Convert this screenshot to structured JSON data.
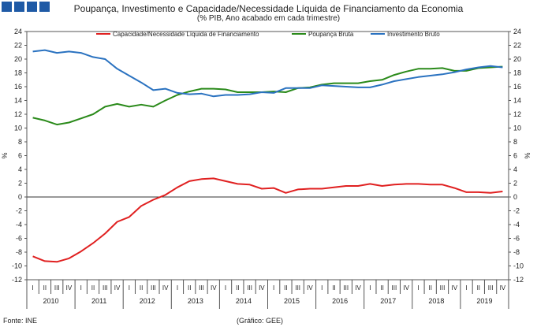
{
  "header": {
    "title": "Poupança, Investimento e Capacidade/Necessidade Líquida de Financiamento da Economia",
    "subtitle": "(% PIB, Ano acabado em cada trimestre)"
  },
  "footer": {
    "source": "Fonte: INE",
    "credit": "(Gráfico: GEE)"
  },
  "colors": {
    "logo": "#1f5aa6",
    "capacidade": "#e02020",
    "poupanca": "#2a8a1a",
    "investimento": "#2a72c0"
  },
  "chart_data": {
    "type": "line",
    "ylabel": "%",
    "ylabel_right": "%",
    "ylim": [
      -12,
      24
    ],
    "yticks": [
      -12,
      -10,
      -8,
      -6,
      -4,
      -2,
      0,
      2,
      4,
      6,
      8,
      10,
      12,
      14,
      16,
      18,
      20,
      22,
      24
    ],
    "legend_position": "top",
    "quarters": [
      "I",
      "II",
      "III",
      "IV",
      "I",
      "II",
      "III",
      "IV",
      "I",
      "II",
      "III",
      "IV",
      "I",
      "II",
      "III",
      "IV",
      "I",
      "II",
      "III",
      "IV",
      "I",
      "II",
      "III",
      "IV",
      "I",
      "II",
      "III",
      "IV",
      "I",
      "II",
      "III",
      "IV",
      "I",
      "II",
      "III",
      "IV",
      "I",
      "II",
      "III",
      "IV"
    ],
    "years": [
      "2010",
      "2011",
      "2012",
      "2013",
      "2014",
      "2015",
      "2016",
      "2017",
      "2018",
      "2019"
    ],
    "series": [
      {
        "name": "Capacidade/Necessidade Líquida de Financiamento",
        "color": "#e02020",
        "values": [
          -8.6,
          -9.3,
          -9.4,
          -8.9,
          -7.9,
          -6.7,
          -5.3,
          -3.6,
          -2.9,
          -1.3,
          -0.4,
          0.3,
          1.4,
          2.3,
          2.6,
          2.7,
          2.3,
          1.9,
          1.8,
          1.2,
          1.3,
          0.6,
          1.1,
          1.2,
          1.2,
          1.4,
          1.6,
          1.6,
          1.9,
          1.6,
          1.8,
          1.9,
          1.9,
          1.8,
          1.8,
          1.3,
          0.7,
          0.7,
          0.6,
          0.8
        ]
      },
      {
        "name": "Poupança Bruta",
        "color": "#2a8a1a",
        "values": [
          11.5,
          11.1,
          10.5,
          10.8,
          11.4,
          12.0,
          13.1,
          13.5,
          13.1,
          13.4,
          13.1,
          14.0,
          14.8,
          15.3,
          15.7,
          15.7,
          15.6,
          15.2,
          15.2,
          15.2,
          15.3,
          15.2,
          15.8,
          15.9,
          16.3,
          16.5,
          16.5,
          16.5,
          16.8,
          17.0,
          17.7,
          18.2,
          18.6,
          18.6,
          18.7,
          18.3,
          18.3,
          18.7,
          18.8,
          18.9
        ]
      },
      {
        "name": "Investimento Bruto",
        "color": "#2a72c0",
        "values": [
          21.1,
          21.3,
          20.9,
          21.1,
          20.9,
          20.3,
          20.0,
          18.6,
          17.6,
          16.6,
          15.5,
          15.7,
          15.1,
          14.9,
          15.0,
          14.6,
          14.8,
          14.8,
          14.9,
          15.2,
          15.1,
          15.8,
          15.8,
          15.8,
          16.2,
          16.1,
          16.0,
          15.9,
          15.9,
          16.3,
          16.8,
          17.1,
          17.4,
          17.6,
          17.8,
          18.1,
          18.5,
          18.8,
          19.0,
          18.8
        ]
      }
    ]
  }
}
